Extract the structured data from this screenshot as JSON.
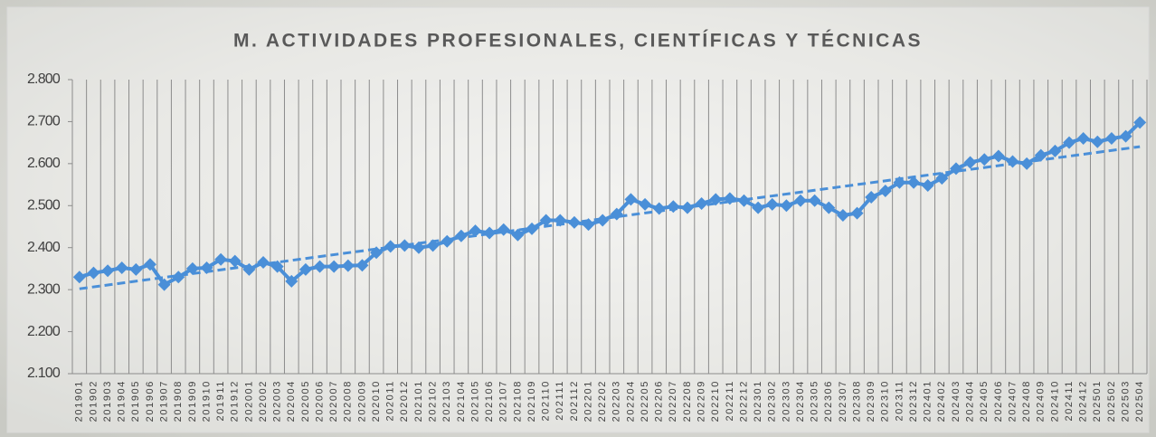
{
  "chart_data": {
    "type": "line",
    "title": "M. ACTIVIDADES PROFESIONALES, CIENTÍFICAS Y TÉCNICAS",
    "categories": [
      "201901",
      "201902",
      "201903",
      "201904",
      "201905",
      "201906",
      "201907",
      "201908",
      "201909",
      "201910",
      "201911",
      "201912",
      "202001",
      "202002",
      "202003",
      "202004",
      "202005",
      "202006",
      "202007",
      "202008",
      "202009",
      "202010",
      "202011",
      "202012",
      "202101",
      "202102",
      "202103",
      "202104",
      "202105",
      "202106",
      "202107",
      "202108",
      "202109",
      "202110",
      "202111",
      "202112",
      "202201",
      "202202",
      "202203",
      "202204",
      "202205",
      "202206",
      "202207",
      "202208",
      "202209",
      "202210",
      "202211",
      "202212",
      "202301",
      "202302",
      "202303",
      "202304",
      "202305",
      "202306",
      "202307",
      "202308",
      "202309",
      "202310",
      "202311",
      "202312",
      "202401",
      "202402",
      "202403",
      "202404",
      "202405",
      "202406",
      "202407",
      "202408",
      "202409",
      "202410",
      "202411",
      "202412",
      "202501",
      "202502",
      "202503",
      "202504"
    ],
    "values": [
      2330,
      2340,
      2345,
      2352,
      2348,
      2360,
      2312,
      2330,
      2350,
      2352,
      2372,
      2368,
      2348,
      2365,
      2355,
      2320,
      2348,
      2355,
      2355,
      2357,
      2358,
      2388,
      2403,
      2405,
      2400,
      2405,
      2415,
      2428,
      2440,
      2435,
      2443,
      2430,
      2445,
      2465,
      2465,
      2460,
      2455,
      2465,
      2480,
      2515,
      2503,
      2493,
      2498,
      2495,
      2505,
      2515,
      2517,
      2512,
      2495,
      2503,
      2500,
      2512,
      2512,
      2495,
      2477,
      2482,
      2520,
      2535,
      2555,
      2555,
      2548,
      2565,
      2588,
      2603,
      2610,
      2618,
      2605,
      2600,
      2620,
      2630,
      2650,
      2660,
      2652,
      2660,
      2665,
      2698
    ],
    "color": "#4a8fd8",
    "trendline": "linear",
    "ylim": [
      2100,
      2800
    ],
    "yticks": [
      {
        "value": 2100,
        "label": "2.100"
      },
      {
        "value": 2200,
        "label": "2.200"
      },
      {
        "value": 2300,
        "label": "2.300"
      },
      {
        "value": 2400,
        "label": "2.400"
      },
      {
        "value": 2500,
        "label": "2.500"
      },
      {
        "value": 2600,
        "label": "2.600"
      },
      {
        "value": 2700,
        "label": "2.700"
      },
      {
        "value": 2800,
        "label": "2.800"
      }
    ],
    "grid": true
  }
}
